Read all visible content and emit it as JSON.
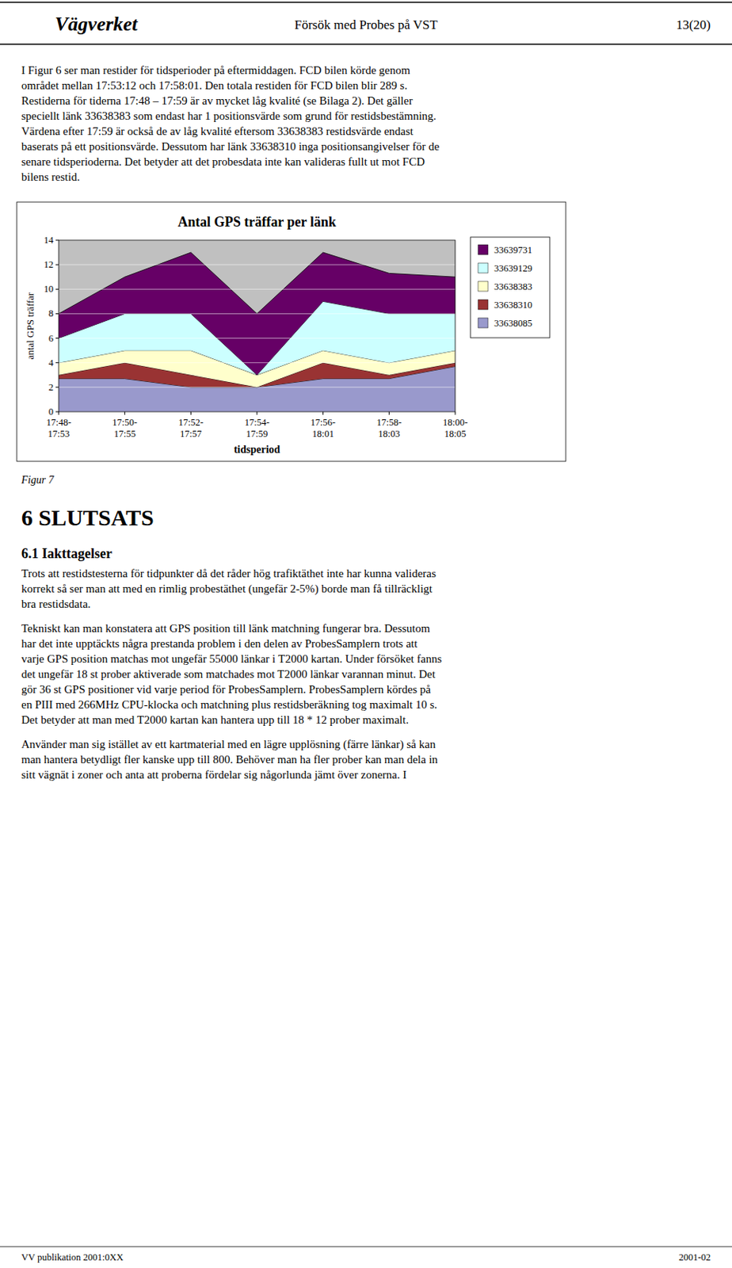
{
  "header": {
    "logo": "Vägverket",
    "title": "Försök med Probes på VST",
    "page": "13(20)"
  },
  "body_top": [
    "I Figur 6 ser man restider för tidsperioder på eftermiddagen. FCD bilen körde genom",
    "området mellan 17:53:12 och 17:58:01. Den totala restiden för FCD bilen blir 289 s.",
    "Restiderna för tiderna 17:48 – 17:59 är av mycket låg kvalité (se Bilaga 2). Det gäller",
    "speciellt länk 33638383 som endast har 1 positionsvärde som grund för restidsbestämning.",
    "Värdena efter 17:59 är också de av låg kvalité eftersom 33638383 restidsvärde endast",
    "baserats på ett positionsvärde. Dessutom har länk 33638310 inga positionsangivelser för de",
    "senare tidsperioderna. Det betyder att det probesdata inte kan valideras fullt ut mot FCD",
    "bilens restid."
  ],
  "chart_data": {
    "type": "area",
    "stacked": true,
    "title": "Antal GPS träffar per länk",
    "xlabel": "tidsperiod",
    "ylabel": "antal GPS träffar",
    "categories": [
      "17:48-\n17:53",
      "17:50-\n17:55",
      "17:52-\n17:57",
      "17:54-\n17:59",
      "17:56-\n18:01",
      "17:58-\n18:03",
      "18:00-\n18:05"
    ],
    "series": [
      {
        "name": "33638085",
        "color": "#9999cc",
        "values": [
          2.7,
          2.7,
          2.0,
          2.0,
          2.7,
          2.7,
          3.7
        ]
      },
      {
        "name": "33638310",
        "color": "#993333",
        "values": [
          0.3,
          1.3,
          1.0,
          0.0,
          1.3,
          0.3,
          0.3
        ]
      },
      {
        "name": "33638383",
        "color": "#ffffcc",
        "values": [
          1.0,
          1.0,
          2.0,
          1.0,
          1.0,
          1.0,
          1.0
        ]
      },
      {
        "name": "33639129",
        "color": "#ccffff",
        "values": [
          2.0,
          3.0,
          3.0,
          0.0,
          4.0,
          4.0,
          3.0
        ]
      },
      {
        "name": "33639731",
        "color": "#660066",
        "values": [
          2.0,
          3.0,
          5.0,
          5.0,
          4.0,
          3.3,
          3.0
        ]
      }
    ],
    "ylim": [
      0,
      14
    ],
    "yticks": [
      0,
      2,
      4,
      6,
      8,
      10,
      12,
      14
    ],
    "grid": true,
    "legend": "right"
  },
  "figure_caption": "Figur 7",
  "section_title": "6 SLUTSATS",
  "section_6_1": "6.1 Iakttagelser",
  "body_iakt": [
    "Trots att restidstesterna för tidpunkter då det råder hög trafiktäthet inte har kunna valideras",
    "korrekt så ser man att med en rimlig probestäthet (ungefär 2-5%) borde man få tillräckligt",
    "bra restidsdata."
  ],
  "body_tekn": [
    "Tekniskt kan man konstatera att GPS position till länk matchning fungerar bra. Dessutom",
    "har det inte upptäckts några prestanda problem i den delen av ProbesSamplern trots att",
    "varje GPS position matchas mot ungefär 55000 länkar i T2000 kartan. Under försöket fanns",
    "det ungefär 18 st prober aktiverade som matchades mot T2000 länkar varannan minut. Det",
    "gör 36 st GPS positioner vid varje period för ProbesSamplern. ProbesSamplern kördes på",
    "en PIII med 266MHz CPU-klocka och matchning plus restidsberäkning tog maximalt 10 s.",
    "Det betyder att man med T2000 kartan kan hantera upp till 18 * 12 prober maximalt."
  ],
  "body_anv": [
    "Använder man sig istället av ett kartmaterial med en lägre upplösning (färre länkar) så kan",
    "man hantera betydligt fler kanske upp till 800. Behöver man ha fler prober kan man dela in",
    "sitt vägnät i zoner och anta att proberna fördelar sig någorlunda jämt över zonerna. I"
  ],
  "footer": {
    "left": "VV publikation 2001:0XX",
    "right": "2001-02"
  }
}
